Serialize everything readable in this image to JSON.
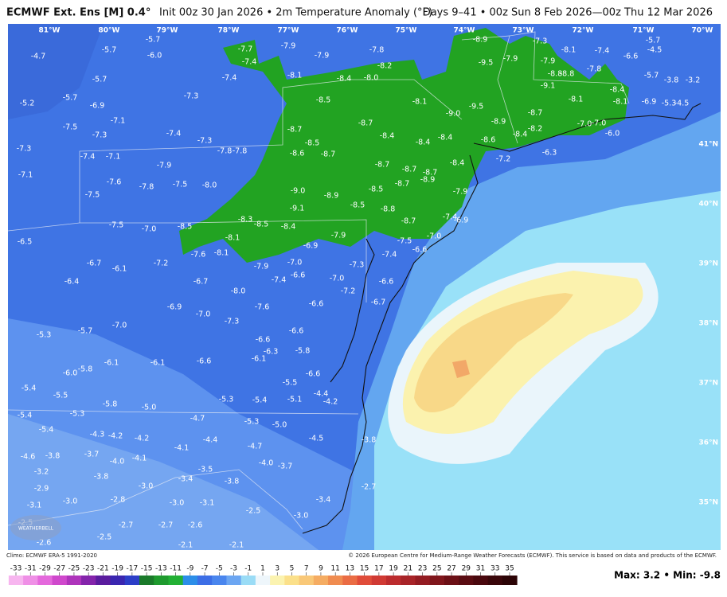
{
  "header": {
    "title_bold": "ECMWF Ext. Ens [M] 0.4°",
    "title_rest": "Init 00z 30 Jan 2026 • 2m Temperature Anomaly (°F)",
    "right": "Days 9–41 • 00z Sun 8 Feb 2026—00z Thu 12 Mar 2026"
  },
  "map": {
    "longitudes": [
      "81°W",
      "80°W",
      "79°W",
      "78°W",
      "77°W",
      "76°W",
      "75°W",
      "74°W",
      "73°W",
      "72°W",
      "71°W",
      "70°W"
    ],
    "latitudes": [
      "41°N",
      "40°N",
      "39°N",
      "38°N",
      "37°N",
      "36°N",
      "35°N"
    ],
    "labels": [
      "-4.7",
      "-5.7",
      "-5.7",
      "-6.0",
      "-5.7",
      "-5.2",
      "-5.7",
      "-6.9",
      "-7.5",
      "-7.1",
      "-7.3",
      "-7.3",
      "-7.1",
      "-7.4",
      "-7.1",
      "-7.3",
      "-7.4",
      "-7.4",
      "-7.3",
      "-7.8",
      "-7.8",
      "-7.9",
      "-7.6",
      "-7.8",
      "-7.5",
      "-8.0",
      "-7.5",
      "-7.5",
      "-7.0",
      "-8.5",
      "-8.1",
      "-6.5",
      "-6.7",
      "-6.1",
      "-7.2",
      "-7.6",
      "-8.1",
      "-8.3",
      "-8.5",
      "-8.4",
      "-7.9",
      "-6.9",
      "-7.9",
      "-7.4",
      "-7.0",
      "-6.6",
      "-7.0",
      "-7.3",
      "-7.2",
      "-7.4",
      "-6.6",
      "-6.7",
      "-6.4",
      "-6.7",
      "-8.0",
      "-6.9",
      "-7.6",
      "-6.6",
      "-7.0",
      "-7.3",
      "-7.0",
      "-5.7",
      "-5.3",
      "-6.6",
      "-6.6",
      "-6.3",
      "-5.8",
      "-6.1",
      "-6.6",
      "-6.1",
      "-6.1",
      "-5.8",
      "-6.0",
      "-5.5",
      "-6.6",
      "-5.4",
      "-5.5",
      "-5.8",
      "-5.3",
      "-5.4",
      "-5.1",
      "-4.4",
      "-4.2",
      "-5.0",
      "-5.4",
      "-5.3",
      "-4.7",
      "-5.3",
      "-5.0",
      "-5.4",
      "-4.3",
      "-4.2",
      "-4.2",
      "-4.4",
      "-4.7",
      "-4.1",
      "-4.5",
      "-3.8",
      "-4.6",
      "-3.8",
      "-3.7",
      "-4.0",
      "-4.1",
      "-3.5",
      "-4.0",
      "-3.7",
      "-3.2",
      "-3.8",
      "-3.4",
      "-3.8",
      "-2.9",
      "-3.0",
      "-2.7",
      "-3.0",
      "-2.8",
      "-3.0",
      "-3.1",
      "-3.4",
      "-3.1",
      "-2.5",
      "-3.0",
      "-2.7",
      "-2.7",
      "-2.6",
      "-2.5",
      "-2.5",
      "-2.6",
      "-2.1",
      "-2.1",
      "-7.7",
      "-7.9",
      "-7.4",
      "-7.9",
      "-7.8",
      "-8.1",
      "-8.4",
      "-8.2",
      "-8.0",
      "-8.5",
      "-8.1",
      "-9.0",
      "-9.5",
      "-9.5",
      "-8.9",
      "-7.9",
      "-7.3",
      "-7.9",
      "-8.1",
      "-7.4",
      "-6.6",
      "-7.8",
      "-8.8",
      "-8.8",
      "-9.1",
      "-8.1",
      "-8.4",
      "-8.1",
      "-6.9",
      "-8.7",
      "-8.9",
      "-8.2",
      "-8.4",
      "-8.6",
      "-7.0",
      "-7.0",
      "-6.0",
      "-6.3",
      "-7.2",
      "-8.7",
      "-8.7",
      "-8.5",
      "-8.6",
      "-8.7",
      "-8.4",
      "-8.4",
      "-8.4",
      "-8.7",
      "-8.4",
      "-8.7",
      "-8.7",
      "-8.9",
      "-9.0",
      "-8.9",
      "-8.5",
      "-8.7",
      "-7.9",
      "-9.1",
      "-8.5",
      "-8.8",
      "-8.7",
      "-7.4",
      "-6.9",
      "-7.5",
      "-7.0",
      "-6.6",
      "-5.7",
      "-5.7",
      "-3.8",
      "-3.2",
      "-5.3",
      "-4.5",
      "-4.5"
    ]
  },
  "footer": {
    "climo": "Climo: ECMWF ERA-5 1991-2020",
    "copyright": "© 2026 European Centre for Medium-Range Weather Forecasts (ECMWF). This service is based on data and products of the ECMWF.",
    "stats": "Max: 3.2 • Min: -9.8",
    "logo": "WEATHERBELL"
  },
  "colorbar": {
    "ticks": [
      -33,
      -31,
      -29,
      -27,
      -25,
      -23,
      -21,
      -19,
      -17,
      -15,
      -13,
      -11,
      -9,
      -7,
      -5,
      -3,
      -1,
      1,
      3,
      5,
      7,
      9,
      11,
      13,
      15,
      17,
      19,
      21,
      23,
      25,
      27,
      29,
      31,
      33,
      35
    ],
    "colors": [
      "#f7b5ef",
      "#ef8fe6",
      "#e468dc",
      "#cf48cc",
      "#ae34bb",
      "#8424ab",
      "#5a1c9e",
      "#3a26b0",
      "#2c3ec8",
      "#1a7a2a",
      "#1e9a2e",
      "#22b034",
      "#2c8ee8",
      "#3c6ee6",
      "#4a86ee",
      "#6ca6f2",
      "#9adcf6",
      "#eef6fb",
      "#fbf3b0",
      "#fbe08a",
      "#f9c878",
      "#f5ac62",
      "#f08c50",
      "#ea6c44",
      "#e04c3a",
      "#d03a34",
      "#bc2c2e",
      "#a82428",
      "#941c22",
      "#80161c",
      "#6c1016",
      "#5a0c12",
      "#4a080e",
      "#3a060a",
      "#2c0406"
    ]
  }
}
